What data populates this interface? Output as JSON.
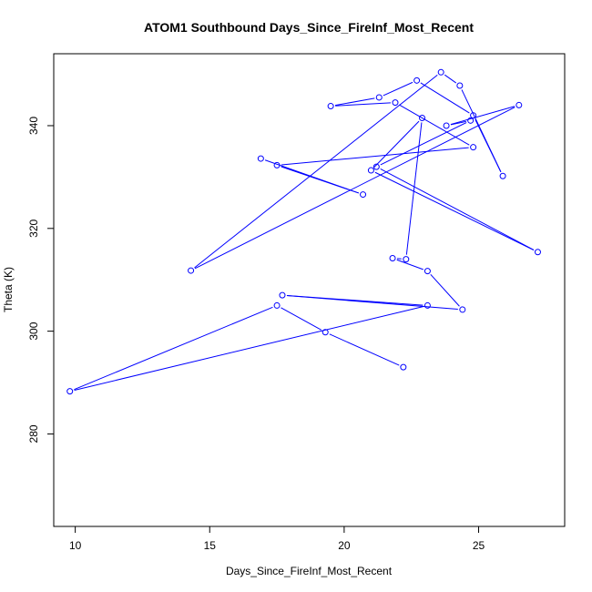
{
  "chart_data": {
    "type": "line",
    "title": "ATOM1 Southbound Days_Since_FireInf_Most_Recent",
    "xlabel": "Days_Since_FireInf_Most_Recent",
    "ylabel": "Theta (K)",
    "xlim": [
      9.2,
      28.2
    ],
    "ylim": [
      262,
      354
    ],
    "xticks": [
      10,
      15,
      20,
      25
    ],
    "yticks": [
      280,
      300,
      320,
      340
    ],
    "grid": false,
    "legend": "none",
    "series": [
      {
        "color": "#0000ff",
        "marker": "open-circle",
        "x": [
          22.2,
          19.3,
          17.5,
          9.8,
          23.1,
          17.7,
          24.4,
          23.1,
          21.8,
          22.3,
          22.9,
          21.0,
          27.2,
          21.2,
          24.7,
          23.8,
          26.5,
          14.3,
          23.6,
          24.3,
          25.9,
          24.8,
          22.7,
          21.3,
          19.5,
          21.9,
          24.8,
          17.5,
          20.7,
          16.9
        ],
        "y": [
          293,
          299.8,
          305,
          288.3,
          305,
          307,
          304.2,
          311.7,
          314.2,
          314,
          341.5,
          331.3,
          315.4,
          332,
          341,
          340,
          344,
          311.8,
          350.4,
          347.8,
          330.2,
          342,
          348.8,
          345.5,
          343.8,
          344.5,
          335.8,
          332.3,
          326.6,
          333.6
        ]
      }
    ]
  }
}
